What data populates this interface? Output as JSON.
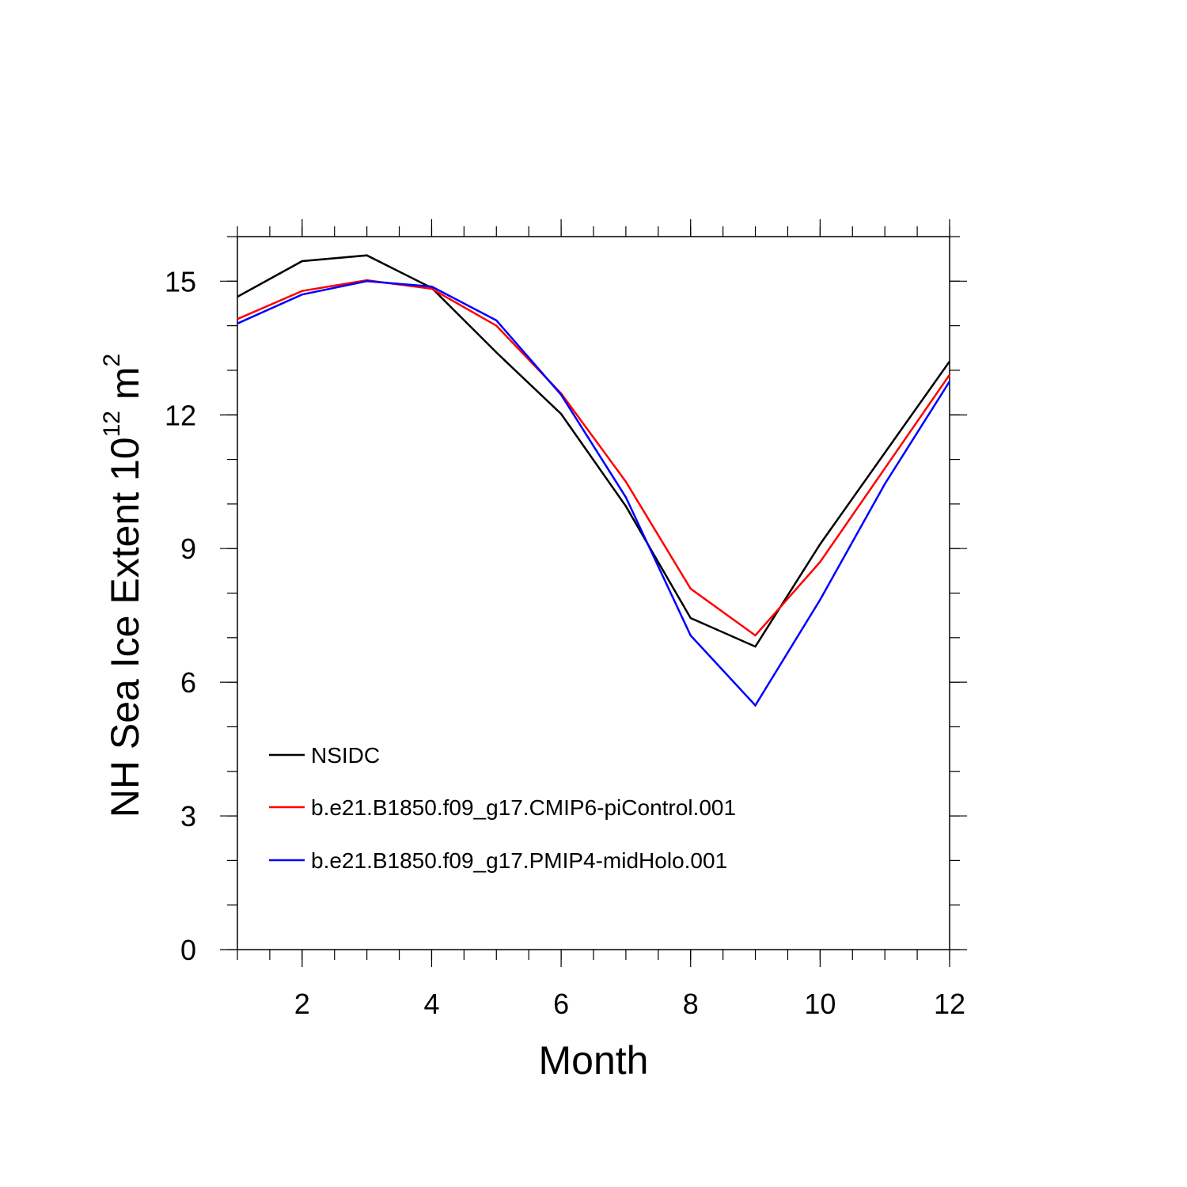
{
  "chart_data": {
    "type": "line",
    "title": "",
    "xlabel": "Month",
    "ylabel": "NH Sea Ice Extent 10",
    "ylabel_superscript": "12",
    "ylabel_unit": " m",
    "ylabel_unit_superscript": "2",
    "xlim": [
      1,
      12
    ],
    "ylim": [
      0,
      16
    ],
    "x_ticks": [
      2,
      4,
      6,
      8,
      10,
      12
    ],
    "y_ticks": [
      0,
      3,
      6,
      9,
      12,
      15
    ],
    "x_minor_step": 0.5,
    "y_minor_step": 1,
    "grid": false,
    "legend_position": "bottom-left",
    "x": [
      1,
      2,
      3,
      4,
      5,
      6,
      7,
      8,
      9,
      10,
      11,
      12
    ],
    "series": [
      {
        "name": "NSIDC",
        "color": "#000000",
        "values": [
          14.65,
          15.45,
          15.58,
          14.85,
          13.4,
          12.02,
          9.95,
          7.44,
          6.8,
          9.1,
          11.15,
          13.2
        ]
      },
      {
        "name": "b.e21.B1850.f09_g17.CMIP6-piControl.001",
        "color": "#ff0000",
        "values": [
          14.15,
          14.78,
          15.02,
          14.83,
          14.0,
          12.48,
          10.5,
          8.1,
          7.05,
          8.7,
          10.8,
          12.9
        ]
      },
      {
        "name": "b.e21.B1850.f09_g17.PMIP4-midHolo.001",
        "color": "#0000ff",
        "values": [
          14.05,
          14.7,
          15.0,
          14.88,
          14.12,
          12.45,
          10.15,
          7.05,
          5.48,
          7.85,
          10.45,
          12.75
        ]
      }
    ]
  }
}
